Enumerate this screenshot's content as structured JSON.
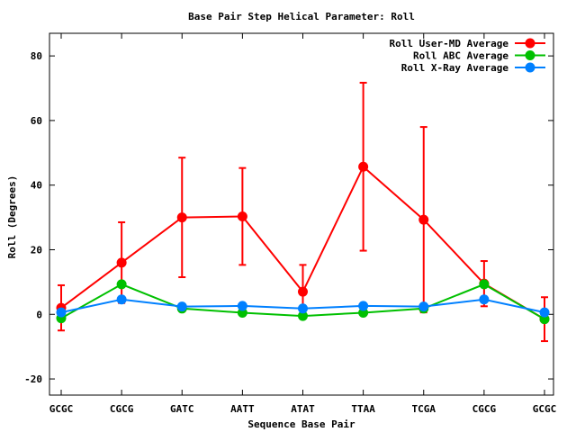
{
  "chart_data": {
    "type": "line",
    "title": "Base Pair Step Helical Parameter: Roll",
    "xlabel": "Sequence Base Pair",
    "ylabel": "Roll (Degrees)",
    "categories": [
      "GCGC",
      "CGCG",
      "GATC",
      "AATT",
      "ATAT",
      "TTAA",
      "TCGA",
      "CGCG",
      "GCGC"
    ],
    "ylim": [
      -25,
      87
    ],
    "yticks": [
      -20,
      0,
      20,
      40,
      60,
      80
    ],
    "ytick_labels": [
      "-20",
      "0",
      "20",
      "40",
      "60",
      "80"
    ],
    "grid": false,
    "legend_position": "top-right",
    "series": [
      {
        "name": "Roll User-MD Average",
        "color": "#ff0000",
        "values": [
          2.0,
          16.0,
          30.0,
          30.3,
          7.0,
          45.7,
          29.3,
          9.5,
          -1.5
        ],
        "error": [
          7.0,
          12.5,
          18.5,
          15.0,
          8.3,
          26.0,
          28.7,
          7.0,
          6.8
        ]
      },
      {
        "name": "Roll ABC Average",
        "color": "#00c000",
        "values": [
          -1.2,
          9.3,
          1.8,
          0.5,
          -0.5,
          0.5,
          1.8,
          9.3,
          -1.5
        ]
      },
      {
        "name": "Roll X-Ray Average",
        "color": "#0080ff",
        "values": [
          0.6,
          4.6,
          2.4,
          2.6,
          1.8,
          2.6,
          2.4,
          4.6,
          0.6
        ]
      }
    ]
  }
}
